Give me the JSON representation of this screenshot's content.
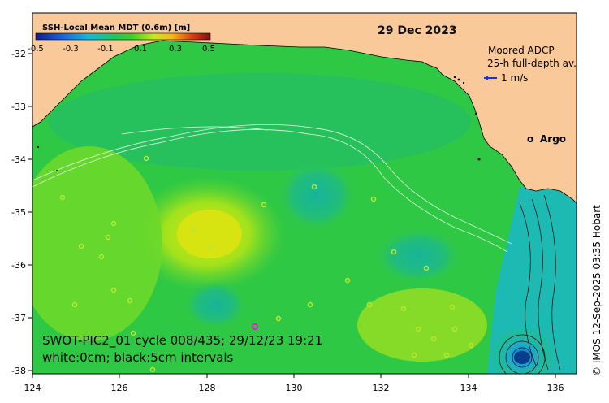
{
  "map": {
    "colorbar": {
      "title": "SSH-Local Mean MDT (0.6m) [m]",
      "ticks": [
        "-0.5",
        "-0.3",
        "-0.1",
        "0.1",
        "0.3",
        "0.5"
      ],
      "range": [
        -0.5,
        0.5
      ]
    },
    "date": "29 Dec 2023",
    "legend": {
      "line1": "Moored ADCP",
      "line2": "25-h full-depth av.",
      "arrow_label": "1 m/s",
      "argo_symbol": "o",
      "argo_label": "Argo"
    },
    "info": {
      "line1": "SWOT-PIC2_01 cycle 008/435; 29/12/23 19:21",
      "line2": "white:0cm; black:5cm intervals"
    },
    "credit": "© IMOS 12-Sep-2025 03:35 Hobart",
    "axes": {
      "x_range": [
        124,
        136.5
      ],
      "y_range": [
        -38.1,
        -31.5
      ],
      "x_ticks": [
        "124",
        "126",
        "128",
        "130",
        "132",
        "134",
        "136"
      ],
      "y_ticks": [
        "-32",
        "-33",
        "-34",
        "-35",
        "-36",
        "-37",
        "-38"
      ]
    },
    "colors": {
      "land": "#fac99a",
      "ocean_base": "#2fc845",
      "high": "#c8e81c",
      "low": "#1bb9a6",
      "argo": "#e21ad8",
      "arrow": "#1a32d8"
    }
  }
}
